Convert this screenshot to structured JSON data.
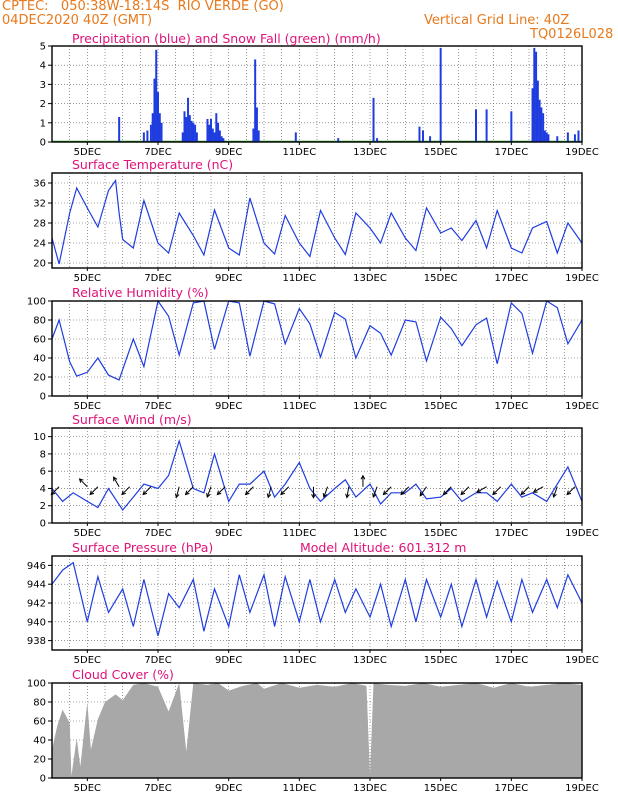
{
  "header": {
    "line1": "CPTEC:   050:38W-18:14S  RIO VERDE (GO)",
    "line2": "04DEC2020 40Z (GMT)",
    "grid_note": "Vertical Grid Line: 40Z",
    "code": "TQ0126L028"
  },
  "colors": {
    "header": "#e8791c",
    "title": "#e0127a",
    "line": "#1f3ddf",
    "bar": "#1f3ddf",
    "snow": "#18a018",
    "cloud": "#a8a8a8",
    "arrow": "#000000"
  },
  "chart_data": [
    {
      "id": "precip",
      "type": "bar",
      "title": "Precipitation (blue) and Snow Fall (green) (mm/h)",
      "xlim": [
        4.0,
        19.0
      ],
      "ylim": [
        0,
        5
      ],
      "yticks": [
        0,
        1,
        2,
        3,
        4,
        5
      ],
      "xticks": [
        {
          "x": 5,
          "label": "5DEC"
        },
        {
          "x": 7,
          "label": "7DEC"
        },
        {
          "x": 9,
          "label": "9DEC"
        },
        {
          "x": 11,
          "label": "11DEC"
        },
        {
          "x": 13,
          "label": "13DEC"
        },
        {
          "x": 15,
          "label": "15DEC"
        },
        {
          "x": 17,
          "label": "17DEC"
        },
        {
          "x": 19,
          "label": "19DEC"
        }
      ],
      "grid": "vertical dotted every 0.5 day, horizontal dotted at y ticks",
      "bars_x": [
        5.9,
        6.6,
        6.7,
        6.8,
        6.85,
        6.9,
        6.95,
        7.0,
        7.05,
        7.1,
        7.7,
        7.75,
        7.8,
        7.85,
        7.9,
        7.95,
        8.0,
        8.05,
        8.1,
        8.4,
        8.45,
        8.5,
        8.55,
        8.6,
        8.65,
        8.7,
        8.75,
        8.8,
        8.85,
        9.7,
        9.75,
        9.8,
        9.85,
        10.9,
        12.1,
        13.1,
        13.2,
        14.4,
        14.5,
        14.7,
        15.0,
        16.0,
        16.3,
        17.0,
        17.6,
        17.65,
        17.7,
        17.75,
        17.8,
        17.85,
        17.9,
        17.95,
        18.0,
        18.05,
        18.3,
        18.6,
        18.8,
        18.9
      ],
      "bars_y": [
        1.3,
        0.5,
        0.6,
        0.9,
        1.5,
        3.3,
        4.8,
        2.6,
        1.5,
        1.0,
        0.5,
        1.6,
        1.3,
        2.3,
        1.4,
        1.1,
        1.0,
        0.9,
        0.5,
        1.2,
        0.9,
        1.2,
        0.7,
        0.5,
        1.5,
        1.0,
        0.6,
        0.3,
        0.2,
        0.7,
        4.3,
        1.8,
        0.6,
        0.5,
        0.2,
        2.3,
        0.2,
        0.8,
        0.6,
        0.3,
        4.9,
        1.7,
        1.7,
        1.6,
        2.8,
        4.9,
        4.7,
        3.2,
        2.2,
        1.8,
        1.5,
        0.6,
        0.5,
        0.4,
        0.3,
        0.5,
        0.4,
        0.6
      ],
      "snow_values": "0 throughout"
    },
    {
      "id": "temperature",
      "type": "line",
      "title": "Surface Temperature (nC)",
      "xlim": [
        4.0,
        19.0
      ],
      "ylim": [
        19,
        38
      ],
      "yticks": [
        20,
        24,
        28,
        32,
        36
      ],
      "x": [
        4.0,
        4.2,
        4.5,
        4.7,
        5.0,
        5.3,
        5.6,
        5.8,
        5.9,
        6.0,
        6.3,
        6.6,
        7.0,
        7.3,
        7.6,
        8.0,
        8.3,
        8.6,
        9.0,
        9.3,
        9.6,
        10.0,
        10.3,
        10.6,
        11.0,
        11.3,
        11.6,
        12.0,
        12.3,
        12.6,
        13.0,
        13.3,
        13.6,
        14.0,
        14.3,
        14.6,
        15.0,
        15.3,
        15.6,
        16.0,
        16.3,
        16.6,
        17.0,
        17.3,
        17.6,
        18.0,
        18.3,
        18.6,
        19.0
      ],
      "y": [
        25.0,
        19.8,
        30.0,
        35.0,
        31.0,
        27.2,
        34.5,
        36.5,
        30.0,
        24.7,
        23.0,
        32.5,
        24.0,
        22.0,
        30.0,
        25.5,
        21.6,
        30.6,
        23.0,
        21.6,
        33.0,
        24.0,
        21.8,
        29.5,
        24.0,
        21.3,
        30.5,
        25.0,
        21.7,
        30.0,
        27.0,
        24.0,
        30.0,
        25.0,
        22.5,
        31.0,
        26.0,
        27.0,
        24.5,
        28.5,
        23.0,
        30.5,
        23.0,
        22.0,
        27.0,
        28.3,
        22.0,
        28.0,
        24.0
      ]
    },
    {
      "id": "humidity",
      "type": "line",
      "title": "Relative Humidity (%)",
      "xlim": [
        4.0,
        19.0
      ],
      "ylim": [
        0,
        100
      ],
      "yticks": [
        0,
        20,
        40,
        60,
        80,
        100
      ],
      "x": [
        4.0,
        4.2,
        4.5,
        4.7,
        5.0,
        5.3,
        5.6,
        5.9,
        6.3,
        6.6,
        7.0,
        7.3,
        7.6,
        8.0,
        8.3,
        8.6,
        9.0,
        9.3,
        9.6,
        10.0,
        10.3,
        10.6,
        11.0,
        11.3,
        11.6,
        12.0,
        12.3,
        12.6,
        13.0,
        13.3,
        13.6,
        14.0,
        14.3,
        14.6,
        15.0,
        15.3,
        15.6,
        16.0,
        16.3,
        16.6,
        17.0,
        17.3,
        17.6,
        18.0,
        18.3,
        18.6,
        19.0
      ],
      "y": [
        60,
        80,
        36,
        21,
        25,
        40,
        22,
        17,
        60,
        31,
        100,
        84,
        43,
        98,
        100,
        49,
        100,
        98,
        42,
        100,
        97,
        55,
        92,
        76,
        41,
        88,
        81,
        40,
        74,
        66,
        43,
        80,
        78,
        37,
        83,
        71,
        53,
        75,
        82,
        34,
        98,
        87,
        45,
        100,
        93,
        55,
        80
      ]
    },
    {
      "id": "wind",
      "type": "line",
      "title": "Surface Wind (m/s)",
      "xlim": [
        4.0,
        19.0
      ],
      "ylim": [
        0,
        11
      ],
      "yticks": [
        0,
        2,
        4,
        6,
        8,
        10
      ],
      "x": [
        4.0,
        4.3,
        4.6,
        5.0,
        5.3,
        5.6,
        6.0,
        6.3,
        6.6,
        7.0,
        7.3,
        7.6,
        8.0,
        8.3,
        8.6,
        9.0,
        9.3,
        9.6,
        10.0,
        10.3,
        10.6,
        11.0,
        11.3,
        11.6,
        12.0,
        12.3,
        12.6,
        13.0,
        13.3,
        13.6,
        14.0,
        14.3,
        14.6,
        15.0,
        15.3,
        15.6,
        16.0,
        16.3,
        16.6,
        17.0,
        17.3,
        17.6,
        18.0,
        18.3,
        18.6,
        19.0
      ],
      "y": [
        4.0,
        2.5,
        3.5,
        2.5,
        1.8,
        4.0,
        1.5,
        3.0,
        4.5,
        4.0,
        5.5,
        9.5,
        4.0,
        3.5,
        8.0,
        2.5,
        4.5,
        4.5,
        6.0,
        3.0,
        4.5,
        7.0,
        4.0,
        2.5,
        4.0,
        5.0,
        3.0,
        4.5,
        2.2,
        3.5,
        3.5,
        4.5,
        2.8,
        3.0,
        4.0,
        2.5,
        3.5,
        3.5,
        2.5,
        4.5,
        3.0,
        3.5,
        2.5,
        4.5,
        6.5,
        2.5
      ],
      "arrows": [
        {
          "x": 4.2,
          "dir": 225
        },
        {
          "x": 5.0,
          "dir": 315
        },
        {
          "x": 5.3,
          "dir": 225
        },
        {
          "x": 5.9,
          "dir": 330
        },
        {
          "x": 6.2,
          "dir": 225
        },
        {
          "x": 6.8,
          "dir": 225
        },
        {
          "x": 7.6,
          "dir": 195
        },
        {
          "x": 8.0,
          "dir": 225
        },
        {
          "x": 8.5,
          "dir": 200
        },
        {
          "x": 8.9,
          "dir": 225
        },
        {
          "x": 9.7,
          "dir": 225
        },
        {
          "x": 10.2,
          "dir": 195
        },
        {
          "x": 10.7,
          "dir": 225
        },
        {
          "x": 11.4,
          "dir": 180
        },
        {
          "x": 11.8,
          "dir": 200
        },
        {
          "x": 12.4,
          "dir": 190
        },
        {
          "x": 12.8,
          "dir": 0
        },
        {
          "x": 13.2,
          "dir": 200
        },
        {
          "x": 13.6,
          "dir": 225
        },
        {
          "x": 14.1,
          "dir": 225
        },
        {
          "x": 14.6,
          "dir": 215
        },
        {
          "x": 15.3,
          "dir": 225
        },
        {
          "x": 15.8,
          "dir": 225
        },
        {
          "x": 16.3,
          "dir": 240
        },
        {
          "x": 16.7,
          "dir": 225
        },
        {
          "x": 17.5,
          "dir": 225
        },
        {
          "x": 17.9,
          "dir": 240
        },
        {
          "x": 18.3,
          "dir": 200
        },
        {
          "x": 18.8,
          "dir": 225
        }
      ]
    },
    {
      "id": "pressure",
      "type": "line",
      "title": "Surface Pressure (hPa)",
      "subtitle": "Model Altitude: 601.312 m",
      "xlim": [
        4.0,
        19.0
      ],
      "ylim": [
        937,
        947
      ],
      "yticks": [
        938,
        940,
        942,
        944,
        946
      ],
      "x": [
        4.0,
        4.3,
        4.6,
        5.0,
        5.3,
        5.6,
        6.0,
        6.3,
        6.6,
        7.0,
        7.3,
        7.6,
        8.0,
        8.3,
        8.6,
        9.0,
        9.3,
        9.6,
        10.0,
        10.3,
        10.6,
        11.0,
        11.3,
        11.6,
        12.0,
        12.3,
        12.6,
        13.0,
        13.3,
        13.6,
        14.0,
        14.3,
        14.6,
        15.0,
        15.3,
        15.6,
        16.0,
        16.3,
        16.6,
        17.0,
        17.3,
        17.6,
        18.0,
        18.3,
        18.6,
        19.0
      ],
      "y": [
        944.0,
        945.5,
        946.3,
        940.0,
        944.8,
        941.0,
        943.5,
        939.5,
        944.5,
        938.5,
        943.0,
        941.5,
        944.5,
        939.0,
        943.5,
        939.5,
        945.0,
        941.0,
        945.0,
        939.5,
        944.8,
        940.0,
        944.5,
        940.0,
        944.5,
        941.0,
        943.5,
        940.5,
        944.0,
        939.5,
        944.5,
        940.0,
        944.5,
        940.5,
        944.0,
        939.5,
        944.5,
        940.5,
        944.3,
        940.0,
        944.5,
        941.0,
        944.5,
        941.5,
        945.0,
        942.0
      ]
    },
    {
      "id": "cloud",
      "type": "area",
      "title": "Cloud Cover (%)",
      "xlim": [
        4.0,
        19.0
      ],
      "ylim": [
        0,
        100
      ],
      "yticks": [
        0,
        20,
        40,
        60,
        80,
        100
      ],
      "x": [
        4.0,
        4.15,
        4.3,
        4.5,
        4.55,
        4.7,
        4.8,
        5.0,
        5.1,
        5.3,
        5.5,
        5.8,
        6.0,
        6.3,
        6.6,
        7.0,
        7.3,
        7.6,
        7.8,
        8.0,
        8.4,
        8.7,
        9.0,
        9.4,
        9.8,
        10.0,
        10.5,
        11.0,
        11.5,
        12.0,
        12.5,
        12.9,
        13.0,
        13.1,
        13.5,
        14.0,
        14.5,
        15.0,
        15.5,
        16.0,
        16.5,
        17.0,
        17.5,
        18.0,
        18.5,
        19.0
      ],
      "y": [
        30,
        55,
        72,
        58,
        2,
        42,
        12,
        80,
        30,
        62,
        80,
        88,
        82,
        98,
        100,
        96,
        70,
        100,
        28,
        100,
        98,
        100,
        92,
        97,
        100,
        94,
        100,
        95,
        98,
        96,
        100,
        97,
        3,
        100,
        98,
        97,
        100,
        96,
        98,
        100,
        95,
        100,
        96,
        98,
        100,
        98
      ]
    }
  ]
}
